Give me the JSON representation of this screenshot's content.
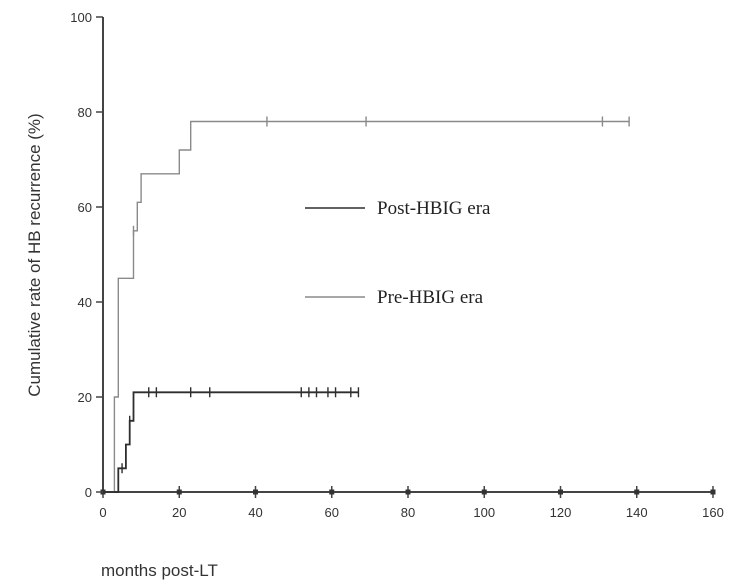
{
  "chart_data": {
    "type": "line",
    "step": true,
    "title": "",
    "xlabel": "months post-LT",
    "ylabel": "Cumulative rate of HB recurrence (%)",
    "xlim": [
      0,
      160
    ],
    "ylim": [
      0,
      100
    ],
    "xticks": [
      0,
      20,
      40,
      60,
      80,
      100,
      120,
      140,
      160
    ],
    "yticks": [
      0,
      20,
      40,
      60,
      80,
      100
    ],
    "grid": false,
    "legend_position": "center-right",
    "series": [
      {
        "name": "Pre-HBIG era",
        "color": "#8a8a8a",
        "steps": [
          [
            0,
            0
          ],
          [
            3,
            0
          ],
          [
            3,
            20
          ],
          [
            4,
            20
          ],
          [
            4,
            45
          ],
          [
            8,
            45
          ],
          [
            8,
            55
          ],
          [
            9,
            55
          ],
          [
            9,
            61
          ],
          [
            10,
            61
          ],
          [
            10,
            67
          ],
          [
            20,
            67
          ],
          [
            20,
            72
          ],
          [
            23,
            72
          ],
          [
            23,
            78
          ],
          [
            138,
            78
          ]
        ],
        "censored": [
          [
            8,
            55
          ],
          [
            43,
            78
          ],
          [
            69,
            78
          ],
          [
            131,
            78
          ],
          [
            138,
            78
          ]
        ]
      },
      {
        "name": "Post-HBIG era",
        "color": "#2e2e2e",
        "steps": [
          [
            0,
            0
          ],
          [
            4,
            0
          ],
          [
            4,
            5
          ],
          [
            6,
            5
          ],
          [
            6,
            10
          ],
          [
            7,
            10
          ],
          [
            7,
            15
          ],
          [
            8,
            15
          ],
          [
            8,
            21
          ],
          [
            67,
            21
          ]
        ],
        "censored": [
          [
            5,
            5
          ],
          [
            7,
            15
          ],
          [
            12,
            21
          ],
          [
            14,
            21
          ],
          [
            23,
            21
          ],
          [
            28,
            21
          ],
          [
            52,
            21
          ],
          [
            54,
            21
          ],
          [
            56,
            21
          ],
          [
            59,
            21
          ],
          [
            61,
            21
          ],
          [
            65,
            21
          ],
          [
            67,
            21
          ]
        ]
      }
    ]
  }
}
